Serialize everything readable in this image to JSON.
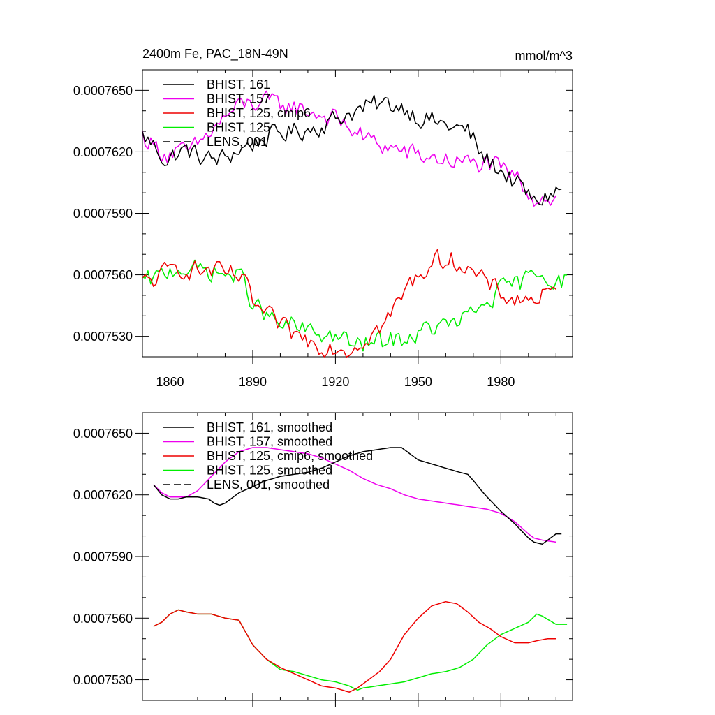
{
  "figure": {
    "title": "2400m Fe, PAC_18N-49N",
    "units": "mmol/m^3"
  },
  "colors": {
    "BHIST_161": "#000000",
    "BHIST_157": "#ee00ee",
    "BHIST_125_cmip6": "#ee0000",
    "BHIST_125": "#00ee00",
    "LENS_001": "#000000"
  },
  "chart_data": [
    {
      "type": "line",
      "title": "2400m Fe, PAC_18N-49N",
      "units": "mmol/m^3",
      "xlabel": "",
      "ylabel": "",
      "xlim": [
        1850,
        2006
      ],
      "ylim": [
        0.000752,
        0.000766
      ],
      "xticks": [
        1860,
        1890,
        1920,
        1950,
        1980
      ],
      "xtick_labels": [
        "1860",
        "1890",
        "1920",
        "1950",
        "1980"
      ],
      "yticks": [
        0.000753,
        0.000756,
        0.000759,
        0.000762,
        0.000765
      ],
      "ytick_labels": [
        "0.0007530",
        "0.0007560",
        "0.0007590",
        "0.0007620",
        "0.0007650"
      ],
      "legend_position": "top-left",
      "legend": [
        "BHIST, 161",
        "BHIST, 157",
        "BHIST, 125, cmip6",
        "BHIST, 125",
        "LENS, 001"
      ],
      "series": [
        {
          "key": "BHIST_161",
          "name": "BHIST, 161",
          "style": "solid",
          "noise": 4.5e-07,
          "x": [
            1850,
            1855,
            1859,
            1862,
            1866,
            1870,
            1875,
            1880,
            1885,
            1890,
            1895,
            1900,
            1905,
            1910,
            1915,
            1920,
            1925,
            1930,
            1935,
            1940,
            1945,
            1950,
            1955,
            1960,
            1965,
            1968,
            1970,
            1973,
            1975,
            1980,
            1985,
            1990,
            1992,
            1995,
            2000,
            2002
          ],
          "y": [
            0.0007628,
            0.0007622,
            0.0007615,
            0.0007619,
            0.0007621,
            0.0007618,
            0.0007616,
            0.0007617,
            0.0007621,
            0.0007624,
            0.0007627,
            0.0007629,
            0.000763,
            0.0007631,
            0.0007633,
            0.0007636,
            0.0007639,
            0.0007641,
            0.0007643,
            0.0007643,
            0.0007642,
            0.0007637,
            0.0007635,
            0.0007633,
            0.0007631,
            0.000763,
            0.0007626,
            0.0007618,
            0.0007616,
            0.0007611,
            0.0007605,
            0.0007599,
            0.0007595,
            0.0007597,
            0.0007601,
            0.0007601
          ]
        },
        {
          "key": "BHIST_157",
          "name": "BHIST, 157",
          "style": "solid",
          "noise": 4.5e-07,
          "x": [
            1850,
            1855,
            1859,
            1862,
            1866,
            1870,
            1875,
            1880,
            1885,
            1890,
            1895,
            1900,
            1905,
            1910,
            1915,
            1920,
            1925,
            1930,
            1935,
            1940,
            1945,
            1950,
            1955,
            1960,
            1965,
            1970,
            1975,
            1980,
            1985,
            1990,
            1992,
            1995,
            2000
          ],
          "y": [
            0.0007628,
            0.0007622,
            0.0007619,
            0.000762,
            0.0007619,
            0.0007623,
            0.000763,
            0.0007637,
            0.0007642,
            0.0007644,
            0.0007644,
            0.0007643,
            0.0007642,
            0.000764,
            0.0007638,
            0.0007636,
            0.0007632,
            0.0007627,
            0.0007624,
            0.0007622,
            0.000762,
            0.0007618,
            0.0007617,
            0.0007616,
            0.0007615,
            0.0007614,
            0.0007614,
            0.0007611,
            0.0007608,
            0.0007601,
            0.0007598,
            0.0007598,
            0.0007597
          ]
        },
        {
          "key": "BHIST_125_cmip6",
          "name": "BHIST, 125, cmip6",
          "style": "solid",
          "noise": 4.5e-07,
          "x": [
            1850,
            1855,
            1860,
            1863,
            1866,
            1870,
            1875,
            1880,
            1883,
            1886,
            1890,
            1893,
            1897,
            1900,
            1905,
            1910,
            1915,
            1920,
            1925,
            1928,
            1932,
            1936,
            1940,
            1945,
            1950,
            1955,
            1960,
            1964,
            1968,
            1972,
            1976,
            1980,
            1985,
            1990,
            1993,
            1997,
            2000
          ],
          "y": [
            0.0007556,
            0.0007558,
            0.0007562,
            0.0007564,
            0.0007563,
            0.0007562,
            0.0007562,
            0.000756,
            0.000756,
            0.0007558,
            0.0007547,
            0.0007542,
            0.0007538,
            0.0007535,
            0.0007531,
            0.0007528,
            0.0007526,
            0.0007525,
            0.0007524,
            0.0007526,
            0.0007531,
            0.0007534,
            0.000754,
            0.0007552,
            0.000756,
            0.0007566,
            0.0007568,
            0.0007567,
            0.0007563,
            0.0007558,
            0.0007555,
            0.0007551,
            0.0007548,
            0.0007548,
            0.0007549,
            0.000755,
            0.000755
          ]
        },
        {
          "key": "BHIST_125",
          "name": "BHIST, 125",
          "style": "solid",
          "noise": 4.5e-07,
          "x": [
            1850,
            1855,
            1860,
            1863,
            1866,
            1870,
            1875,
            1880,
            1883,
            1886,
            1890,
            1893,
            1897,
            1900,
            1905,
            1910,
            1915,
            1920,
            1925,
            1928,
            1930,
            1935,
            1940,
            1945,
            1950,
            1955,
            1960,
            1965,
            1970,
            1975,
            1980,
            1985,
            1990,
            1993,
            1995,
            2000,
            2004
          ],
          "y": [
            0.0007556,
            0.0007558,
            0.0007562,
            0.0007564,
            0.0007563,
            0.0007562,
            0.0007562,
            0.000756,
            0.000756,
            0.0007558,
            0.0007547,
            0.0007542,
            0.0007538,
            0.0007535,
            0.0007535,
            0.0007532,
            0.0007531,
            0.000753,
            0.0007527,
            0.0007525,
            0.0007526,
            0.0007527,
            0.0007528,
            0.0007529,
            0.0007531,
            0.0007534,
            0.0007535,
            0.0007537,
            0.0007541,
            0.0007547,
            0.0007552,
            0.0007555,
            0.0007558,
            0.0007562,
            0.0007562,
            0.0007557,
            0.0007557
          ]
        },
        {
          "key": "LENS_001",
          "name": "LENS, 001",
          "style": "dashed",
          "noise": 0,
          "x": [],
          "y": []
        }
      ]
    },
    {
      "type": "line",
      "title": "",
      "xlabel": "",
      "ylabel": "",
      "xlim": [
        1850,
        2006
      ],
      "ylim": [
        0.000752,
        0.000766
      ],
      "xticks": [
        1860,
        1890,
        1920,
        1950,
        1980
      ],
      "xtick_labels": [],
      "yticks": [
        0.000753,
        0.000756,
        0.000759,
        0.000762,
        0.000765
      ],
      "ytick_labels": [
        "0.0007530",
        "0.0007560",
        "0.0007590",
        "0.0007620",
        "0.0007650"
      ],
      "legend_position": "top-left",
      "legend": [
        "BHIST, 161, smoothed",
        "BHIST, 157, smoothed",
        "BHIST, 125, cmip6, smoothed",
        "BHIST, 125, smoothed",
        "LENS, 001, smoothed"
      ],
      "series": [
        {
          "key": "BHIST_161",
          "name": "BHIST, 161, smoothed",
          "style": "solid",
          "noise": 0,
          "x": [
            1854,
            1857,
            1860,
            1863,
            1866,
            1870,
            1874,
            1876,
            1878,
            1880,
            1885,
            1890,
            1895,
            1900,
            1905,
            1910,
            1915,
            1920,
            1925,
            1930,
            1935,
            1940,
            1944,
            1947,
            1950,
            1955,
            1960,
            1965,
            1968,
            1970,
            1973,
            1975,
            1980,
            1985,
            1990,
            1992,
            1995,
            2000,
            2002
          ],
          "y": [
            0.0007625,
            0.000762,
            0.0007618,
            0.0007618,
            0.0007619,
            0.0007619,
            0.0007618,
            0.0007616,
            0.0007615,
            0.0007616,
            0.0007621,
            0.0007624,
            0.0007627,
            0.0007629,
            0.000763,
            0.0007631,
            0.0007633,
            0.0007636,
            0.0007639,
            0.0007641,
            0.0007642,
            0.0007643,
            0.0007643,
            0.000764,
            0.0007637,
            0.0007635,
            0.0007633,
            0.0007631,
            0.000763,
            0.0007627,
            0.0007622,
            0.0007619,
            0.0007612,
            0.0007606,
            0.0007599,
            0.0007597,
            0.0007596,
            0.0007601,
            0.0007601
          ]
        },
        {
          "key": "BHIST_157",
          "name": "BHIST, 157, smoothed",
          "style": "solid",
          "noise": 0,
          "x": [
            1854,
            1857,
            1860,
            1863,
            1866,
            1870,
            1875,
            1880,
            1885,
            1890,
            1895,
            1900,
            1905,
            1910,
            1915,
            1920,
            1925,
            1930,
            1935,
            1940,
            1945,
            1950,
            1955,
            1960,
            1965,
            1970,
            1975,
            1980,
            1985,
            1990,
            1992,
            1995,
            2000
          ],
          "y": [
            0.0007625,
            0.0007621,
            0.0007619,
            0.0007619,
            0.0007619,
            0.0007622,
            0.0007629,
            0.0007636,
            0.0007641,
            0.0007643,
            0.0007643,
            0.0007642,
            0.0007641,
            0.000764,
            0.0007638,
            0.0007635,
            0.0007632,
            0.0007628,
            0.0007625,
            0.0007623,
            0.000762,
            0.0007618,
            0.0007617,
            0.0007616,
            0.0007615,
            0.0007614,
            0.0007613,
            0.0007611,
            0.0007607,
            0.0007601,
            0.0007599,
            0.0007598,
            0.0007597
          ]
        },
        {
          "key": "BHIST_125_cmip6",
          "name": "BHIST, 125, cmip6, smoothed",
          "style": "solid",
          "noise": 0,
          "x": [
            1854,
            1857,
            1860,
            1863,
            1866,
            1870,
            1875,
            1880,
            1885,
            1890,
            1895,
            1900,
            1905,
            1910,
            1915,
            1920,
            1925,
            1928,
            1932,
            1936,
            1940,
            1945,
            1950,
            1955,
            1960,
            1964,
            1968,
            1972,
            1976,
            1980,
            1985,
            1990,
            1993,
            1997,
            2000
          ],
          "y": [
            0.0007556,
            0.0007558,
            0.0007562,
            0.0007564,
            0.0007563,
            0.0007562,
            0.0007562,
            0.000756,
            0.0007559,
            0.0007547,
            0.000754,
            0.0007536,
            0.0007533,
            0.000753,
            0.0007527,
            0.0007526,
            0.0007524,
            0.0007526,
            0.000753,
            0.0007534,
            0.000754,
            0.0007552,
            0.000756,
            0.0007566,
            0.0007568,
            0.0007567,
            0.0007563,
            0.0007558,
            0.0007555,
            0.0007551,
            0.0007548,
            0.0007548,
            0.0007549,
            0.000755,
            0.000755
          ]
        },
        {
          "key": "BHIST_125",
          "name": "BHIST, 125, smoothed",
          "style": "solid",
          "noise": 0,
          "x": [
            1854,
            1857,
            1860,
            1863,
            1866,
            1870,
            1875,
            1880,
            1885,
            1890,
            1895,
            1900,
            1905,
            1910,
            1915,
            1920,
            1925,
            1928,
            1930,
            1935,
            1940,
            1945,
            1950,
            1955,
            1960,
            1965,
            1970,
            1975,
            1980,
            1985,
            1990,
            1993,
            1995,
            2000,
            2004
          ],
          "y": [
            0.0007556,
            0.0007558,
            0.0007562,
            0.0007564,
            0.0007563,
            0.0007562,
            0.0007562,
            0.000756,
            0.0007559,
            0.0007547,
            0.000754,
            0.0007535,
            0.0007534,
            0.0007532,
            0.000753,
            0.0007529,
            0.0007527,
            0.0007525,
            0.0007526,
            0.0007527,
            0.0007528,
            0.0007529,
            0.0007531,
            0.0007533,
            0.0007534,
            0.0007536,
            0.000754,
            0.0007547,
            0.0007552,
            0.0007555,
            0.0007558,
            0.0007562,
            0.0007561,
            0.0007557,
            0.0007557
          ]
        },
        {
          "key": "LENS_001",
          "name": "LENS, 001, smoothed",
          "style": "dashed",
          "noise": 0,
          "x": [],
          "y": []
        }
      ]
    }
  ]
}
